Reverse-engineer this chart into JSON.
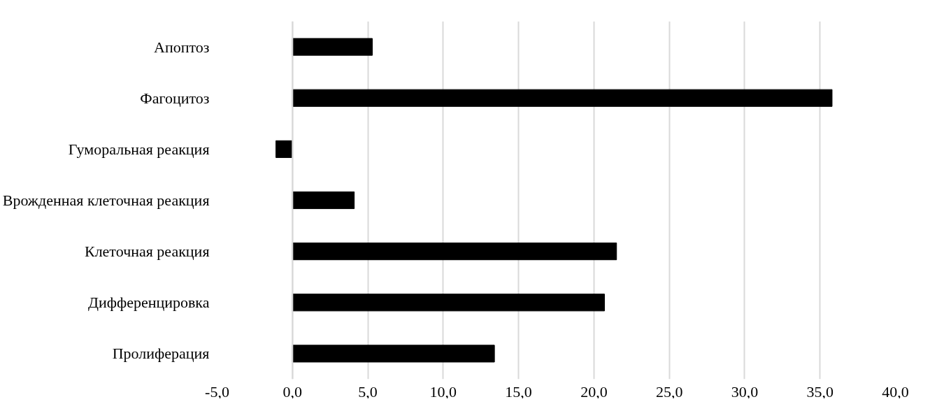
{
  "chart_data": {
    "type": "bar",
    "orientation": "horizontal",
    "categories": [
      "Апоптоз",
      "Фагоцитоз",
      "Гуморальная реакция",
      "Врожденная клеточная реакция",
      "Клеточная реакция",
      "Дифференцировка",
      "Пролиферация"
    ],
    "values": [
      5.3,
      35.8,
      -1.1,
      4.1,
      21.5,
      20.7,
      13.4
    ],
    "color": "#000000",
    "xlim": [
      -5,
      40
    ],
    "xticks": [
      {
        "value": -5,
        "label": "-5,0"
      },
      {
        "value": 0,
        "label": "0,0"
      },
      {
        "value": 5,
        "label": "5,0"
      },
      {
        "value": 10,
        "label": "10,0"
      },
      {
        "value": 15,
        "label": "15,0"
      },
      {
        "value": 20,
        "label": "20,0"
      },
      {
        "value": 25,
        "label": "25,0"
      },
      {
        "value": 30,
        "label": "30,0"
      },
      {
        "value": 35,
        "label": "35,0"
      },
      {
        "value": 40,
        "label": "40,0"
      }
    ],
    "grid": "x"
  }
}
